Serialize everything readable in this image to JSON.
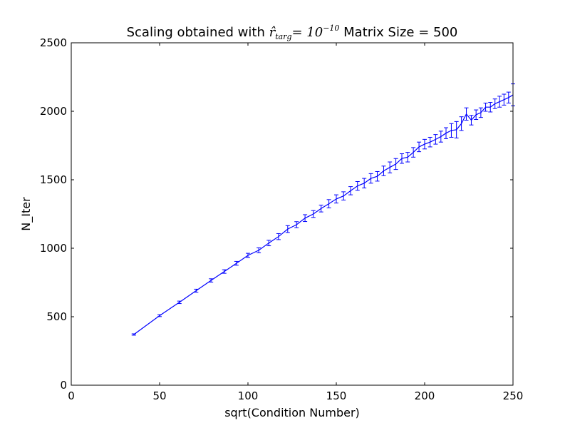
{
  "chart_data": {
    "type": "line",
    "title": {
      "prefix": "Scaling obtained with ",
      "math_symbol": "r̂",
      "math_subscript": "targ",
      "math_equals": "= 10",
      "math_exponent": "−10",
      "suffix": " Matrix Size = 500"
    },
    "xlabel": "sqrt(Condition Number)",
    "ylabel": "N_Iter",
    "xlim": [
      0,
      250
    ],
    "ylim": [
      0,
      2500
    ],
    "xticks": [
      0,
      50,
      100,
      150,
      200,
      250
    ],
    "yticks": [
      0,
      500,
      1000,
      1500,
      2000,
      2500
    ],
    "line_color": "#0000ff",
    "series": [
      {
        "x": [
          35.4,
          50,
          61.2,
          70.7,
          79.1,
          86.6,
          93.5,
          100,
          106.1,
          111.8,
          117.3,
          122.5,
          127.5,
          132.3,
          137,
          141.4,
          145.8,
          150,
          154.1,
          158.1,
          162,
          165.8,
          169.6,
          173.2,
          176.8,
          180.3,
          183.7,
          187.1,
          190.4,
          193.6,
          196.8,
          200,
          203.1,
          206.2,
          209.2,
          212.1,
          215.1,
          218,
          220.8,
          223.6,
          226.4,
          229.1,
          231.8,
          234.5,
          237.2,
          239.8,
          242.4,
          244.9,
          247.5,
          250
        ],
        "y": [
          370,
          508,
          605,
          690,
          765,
          830,
          890,
          948,
          985,
          1038,
          1085,
          1140,
          1172,
          1220,
          1250,
          1290,
          1325,
          1360,
          1382,
          1420,
          1455,
          1475,
          1510,
          1525,
          1565,
          1590,
          1615,
          1655,
          1665,
          1700,
          1740,
          1760,
          1775,
          1795,
          1815,
          1840,
          1860,
          1865,
          1910,
          1980,
          1935,
          1975,
          1990,
          2030,
          2030,
          2055,
          2070,
          2085,
          2100,
          2120
        ],
        "err": [
          5,
          7,
          9,
          11,
          12,
          13,
          14,
          15,
          18,
          20,
          22,
          25,
          22,
          25,
          25,
          25,
          30,
          30,
          30,
          30,
          32,
          35,
          35,
          35,
          35,
          40,
          40,
          35,
          35,
          35,
          35,
          35,
          35,
          35,
          40,
          40,
          50,
          60,
          50,
          45,
          35,
          35,
          35,
          30,
          35,
          35,
          40,
          40,
          40,
          80
        ]
      }
    ]
  }
}
